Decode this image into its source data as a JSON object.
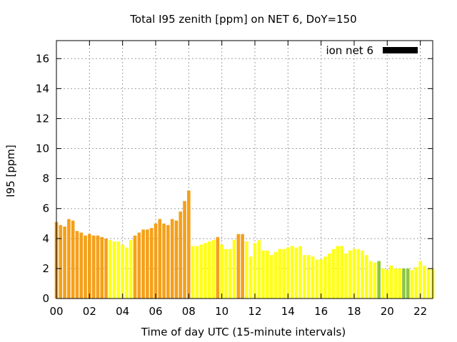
{
  "chart_data": {
    "type": "bar",
    "title": "Total I95 zenith [ppm] on NET 6, DoY=150",
    "xlabel": "Time of day UTC (15-minute intervals)",
    "ylabel": "I95 [ppm]",
    "xlim": [
      0,
      22.75
    ],
    "ylim": [
      0,
      17.2
    ],
    "xticks": [
      "00",
      "02",
      "04",
      "06",
      "08",
      "10",
      "12",
      "14",
      "16",
      "18",
      "20",
      "22"
    ],
    "yticks": [
      "0",
      "2",
      "4",
      "6",
      "8",
      "10",
      "12",
      "14",
      "16"
    ],
    "grid": true,
    "legend": {
      "position": "top-right",
      "entries": [
        {
          "name": "ion net 6",
          "color": "#000000"
        }
      ]
    },
    "interval_hours": 0.25,
    "colors": {
      "orange": "#f5a01a",
      "yellow": "#ffff1a",
      "green": "#8cc63f"
    },
    "values": [
      5.1,
      4.9,
      4.8,
      5.3,
      5.2,
      4.5,
      4.4,
      4.2,
      4.3,
      4.2,
      4.2,
      4.1,
      4.0,
      3.9,
      3.8,
      3.8,
      3.6,
      3.4,
      3.9,
      4.2,
      4.4,
      4.6,
      4.6,
      4.7,
      5.0,
      5.3,
      5.0,
      4.9,
      5.3,
      5.2,
      5.8,
      6.5,
      7.2,
      3.5,
      3.5,
      3.6,
      3.7,
      3.8,
      3.9,
      4.1,
      3.6,
      3.3,
      3.3,
      3.9,
      4.3,
      4.3,
      3.8,
      2.8,
      3.7,
      3.9,
      3.2,
      3.2,
      2.9,
      3.1,
      3.3,
      3.3,
      3.4,
      3.5,
      3.4,
      3.5,
      2.9,
      2.9,
      2.8,
      2.6,
      2.6,
      2.8,
      3.0,
      3.3,
      3.5,
      3.5,
      3.0,
      3.2,
      3.3,
      3.3,
      3.2,
      2.9,
      2.5,
      2.4,
      2.5,
      2.0,
      1.9,
      2.2,
      2.0,
      2.0,
      2.0,
      2.0,
      1.9,
      2.1,
      2.5,
      2.2,
      2.0,
      2.0
    ],
    "bar_colors": [
      "orange",
      "orange",
      "orange",
      "orange",
      "orange",
      "orange",
      "orange",
      "orange",
      "orange",
      "orange",
      "orange",
      "orange",
      "orange",
      "yellow",
      "yellow",
      "yellow",
      "yellow",
      "yellow",
      "yellow",
      "orange",
      "orange",
      "orange",
      "orange",
      "orange",
      "orange",
      "orange",
      "orange",
      "orange",
      "orange",
      "orange",
      "orange",
      "orange",
      "orange",
      "yellow",
      "yellow",
      "yellow",
      "yellow",
      "yellow",
      "yellow",
      "orange",
      "yellow",
      "yellow",
      "yellow",
      "yellow",
      "orange",
      "orange",
      "yellow",
      "yellow",
      "yellow",
      "yellow",
      "yellow",
      "yellow",
      "yellow",
      "yellow",
      "yellow",
      "yellow",
      "yellow",
      "yellow",
      "yellow",
      "yellow",
      "yellow",
      "yellow",
      "yellow",
      "yellow",
      "yellow",
      "yellow",
      "yellow",
      "yellow",
      "yellow",
      "yellow",
      "yellow",
      "yellow",
      "yellow",
      "yellow",
      "yellow",
      "yellow",
      "yellow",
      "yellow",
      "green",
      "yellow",
      "yellow",
      "yellow",
      "yellow",
      "yellow",
      "green",
      "green",
      "yellow",
      "yellow",
      "yellow",
      "yellow",
      "yellow"
    ]
  }
}
